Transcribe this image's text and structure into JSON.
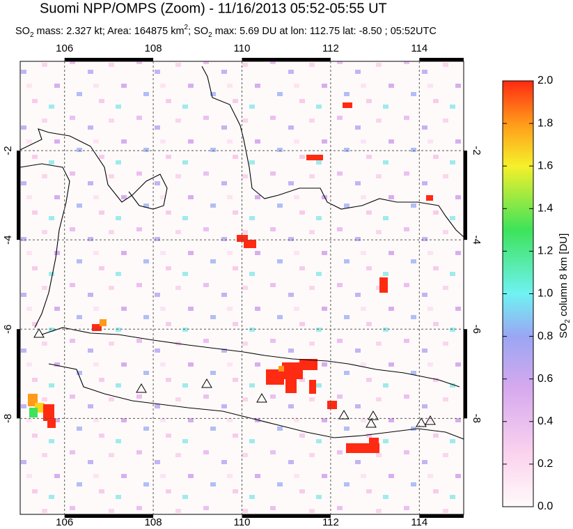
{
  "chart_data": {
    "type": "map",
    "title": "Suomi NPP/OMPS (Zoom) - 11/16/2013 05:52-05:55 UT",
    "subtitle": [
      {
        "text": "SO"
      },
      {
        "text": "2",
        "shift": "sub"
      },
      {
        "text": " mass: 2.327 kt; Area: 164875 km"
      },
      {
        "text": "2",
        "shift": "super"
      },
      {
        "text": "; SO"
      },
      {
        "text": "2",
        "shift": "sub"
      },
      {
        "text": " max: 5.69 DU at lon: 112.75 lat: -8.50 ; 05:52UTC"
      }
    ],
    "xlim": [
      105,
      115
    ],
    "xticks": [
      106,
      108,
      110,
      112,
      114
    ],
    "ylim": [
      -10.15,
      0
    ],
    "yticks": [
      -2,
      -4,
      -6,
      -8
    ],
    "grid": true,
    "colorbar": {
      "label": [
        {
          "text": "SO"
        },
        {
          "text": "2",
          "shift": "sub"
        },
        {
          "text": " column 8 km [DU]"
        }
      ],
      "lim": [
        0,
        2
      ],
      "ticks": [
        {
          "value": 0,
          "label": "0.0"
        },
        {
          "value": 0.2,
          "label": "0.2"
        },
        {
          "value": 0.4,
          "label": "0.4"
        },
        {
          "value": 0.6,
          "label": "0.6"
        },
        {
          "value": 0.8,
          "label": "0.8"
        },
        {
          "value": 1,
          "label": "1.0"
        },
        {
          "value": 1.2,
          "label": "1.2"
        },
        {
          "value": 1.4,
          "label": "1.4"
        },
        {
          "value": 1.6,
          "label": "1.6"
        },
        {
          "value": 1.8,
          "label": "1.8"
        },
        {
          "value": 2,
          "label": "2.0"
        }
      ]
    }
  }
}
